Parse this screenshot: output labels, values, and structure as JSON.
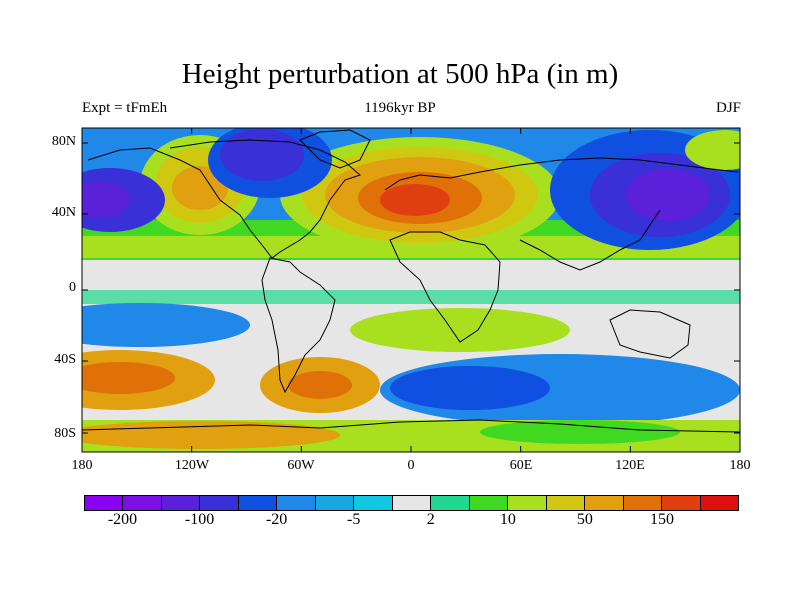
{
  "title": "Height perturbation at 500 hPa (in m)",
  "left_label": "Expt = tFmEh",
  "center_label": "1196kyr BP",
  "right_label": "DJF",
  "lat_labels": [
    "80N",
    "40N",
    "0",
    "40S",
    "80S"
  ],
  "lon_labels": [
    "180",
    "120W",
    "60W",
    "0",
    "60E",
    "120E",
    "180"
  ],
  "colorbar": {
    "colors": [
      "#8a00f0",
      "#7a10e6",
      "#5a20da",
      "#3a30d8",
      "#1050e0",
      "#1f88e8",
      "#18a8e0",
      "#10c8e0",
      "#e6e6e6",
      "#20d890",
      "#40d820",
      "#a8e020",
      "#d0c810",
      "#e0a010",
      "#e07008",
      "#e04010",
      "#e01010"
    ],
    "labels": [
      "-200",
      "-100",
      "-20",
      "-5",
      "2",
      "10",
      "50",
      "150"
    ]
  },
  "map_features": {
    "field": "500 hPa geopotential height perturbation",
    "highs": [
      "North Atlantic / Europe",
      "NE Pacific / Alaska",
      "Southern Pacific",
      "South Atlantic"
    ],
    "lows": [
      "Eastern Canada / Greenland",
      "NW Pacific / Siberia",
      "Southern Ocean",
      "North Pacific"
    ]
  }
}
